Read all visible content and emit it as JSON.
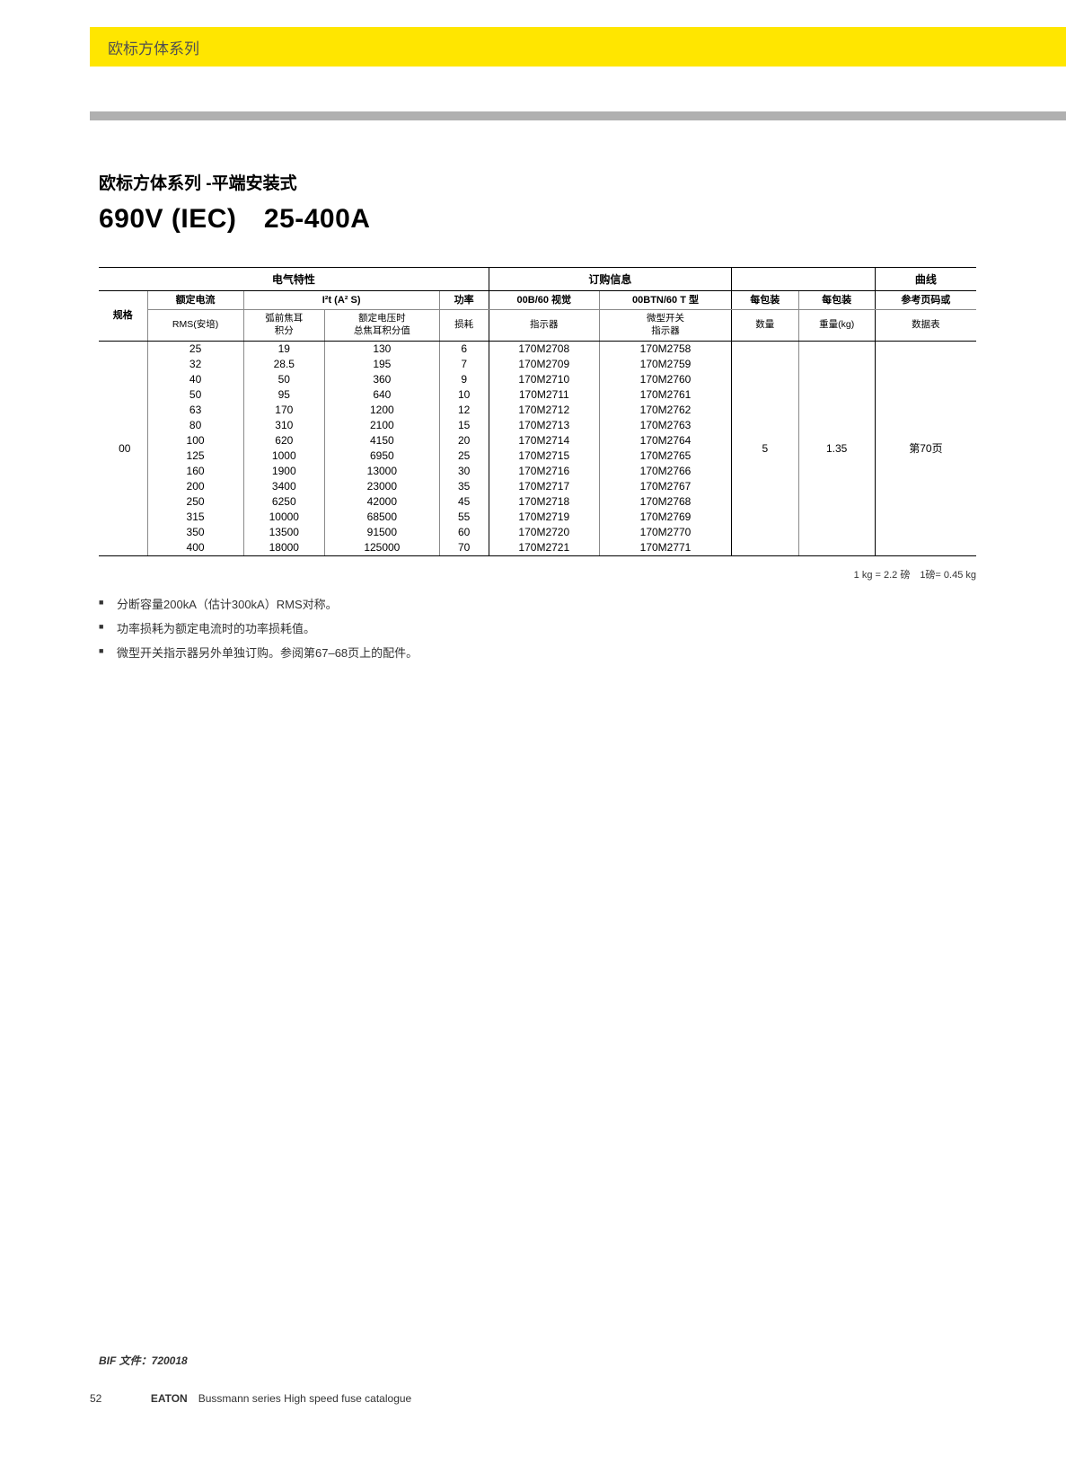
{
  "header": {
    "bar_title": "欧标方体系列",
    "subtitle": "欧标方体系列 -平端安装式",
    "main_title": "690V (IEC)　25-400A"
  },
  "colors": {
    "header_bg": "#ffe600",
    "header_text": "#505050",
    "gray_bar": "#b0b0b0",
    "border": "#000000",
    "light_border": "#8a8a8a"
  },
  "table": {
    "group_headers": {
      "electrical": "电气特性",
      "ordering": "订购信息",
      "curves": "曲线"
    },
    "col_headers": {
      "spec": "规格",
      "rated_current": "额定电流",
      "rated_current_sub": "RMS(安培)",
      "i2t": "I²t (A² S)",
      "i2t_sub1": "弧前焦耳\n积分",
      "i2t_sub2": "额定电压时\n总焦耳积分值",
      "power": "功率",
      "power_sub": "损耗",
      "visual": "00B/60 视觉",
      "visual_sub": "指示器",
      "micro": "00BTN/60 T 型",
      "micro_sub": "微型开关\n指示器",
      "qty": "每包装",
      "qty_sub": "数量",
      "weight": "每包装",
      "weight_sub": "重量(kg)",
      "ref": "参考页码或",
      "ref_sub": "数据表"
    },
    "spec_value": "00",
    "qty_value": "5",
    "weight_value": "1.35",
    "ref_value": "第70页",
    "rows": [
      {
        "current": "25",
        "i2t1": "19",
        "i2t2": "130",
        "power": "6",
        "visual": "170M2708",
        "micro": "170M2758"
      },
      {
        "current": "32",
        "i2t1": "28.5",
        "i2t2": "195",
        "power": "7",
        "visual": "170M2709",
        "micro": "170M2759"
      },
      {
        "current": "40",
        "i2t1": "50",
        "i2t2": "360",
        "power": "9",
        "visual": "170M2710",
        "micro": "170M2760"
      },
      {
        "current": "50",
        "i2t1": "95",
        "i2t2": "640",
        "power": "10",
        "visual": "170M2711",
        "micro": "170M2761"
      },
      {
        "current": "63",
        "i2t1": "170",
        "i2t2": "1200",
        "power": "12",
        "visual": "170M2712",
        "micro": "170M2762"
      },
      {
        "current": "80",
        "i2t1": "310",
        "i2t2": "2100",
        "power": "15",
        "visual": "170M2713",
        "micro": "170M2763"
      },
      {
        "current": "100",
        "i2t1": "620",
        "i2t2": "4150",
        "power": "20",
        "visual": "170M2714",
        "micro": "170M2764"
      },
      {
        "current": "125",
        "i2t1": "1000",
        "i2t2": "6950",
        "power": "25",
        "visual": "170M2715",
        "micro": "170M2765"
      },
      {
        "current": "160",
        "i2t1": "1900",
        "i2t2": "13000",
        "power": "30",
        "visual": "170M2716",
        "micro": "170M2766"
      },
      {
        "current": "200",
        "i2t1": "3400",
        "i2t2": "23000",
        "power": "35",
        "visual": "170M2717",
        "micro": "170M2767"
      },
      {
        "current": "250",
        "i2t1": "6250",
        "i2t2": "42000",
        "power": "45",
        "visual": "170M2718",
        "micro": "170M2768"
      },
      {
        "current": "315",
        "i2t1": "10000",
        "i2t2": "68500",
        "power": "55",
        "visual": "170M2719",
        "micro": "170M2769"
      },
      {
        "current": "350",
        "i2t1": "13500",
        "i2t2": "91500",
        "power": "60",
        "visual": "170M2720",
        "micro": "170M2770"
      },
      {
        "current": "400",
        "i2t1": "18000",
        "i2t2": "125000",
        "power": "70",
        "visual": "170M2721",
        "micro": "170M2771"
      }
    ]
  },
  "conversion_note": "1 kg = 2.2 磅　1磅= 0.45 kg",
  "bullets": [
    "分断容量200kA（估计300kA）RMS对称。",
    "功率损耗为额定电流时的功率损耗值。",
    "微型开关指示器另外单独订购。参阅第67–68页上的配件。"
  ],
  "footer": {
    "bif": "BIF 文件：720018",
    "page_num": "52",
    "brand": "EATON",
    "text": "Bussmann series High speed fuse catalogue"
  }
}
